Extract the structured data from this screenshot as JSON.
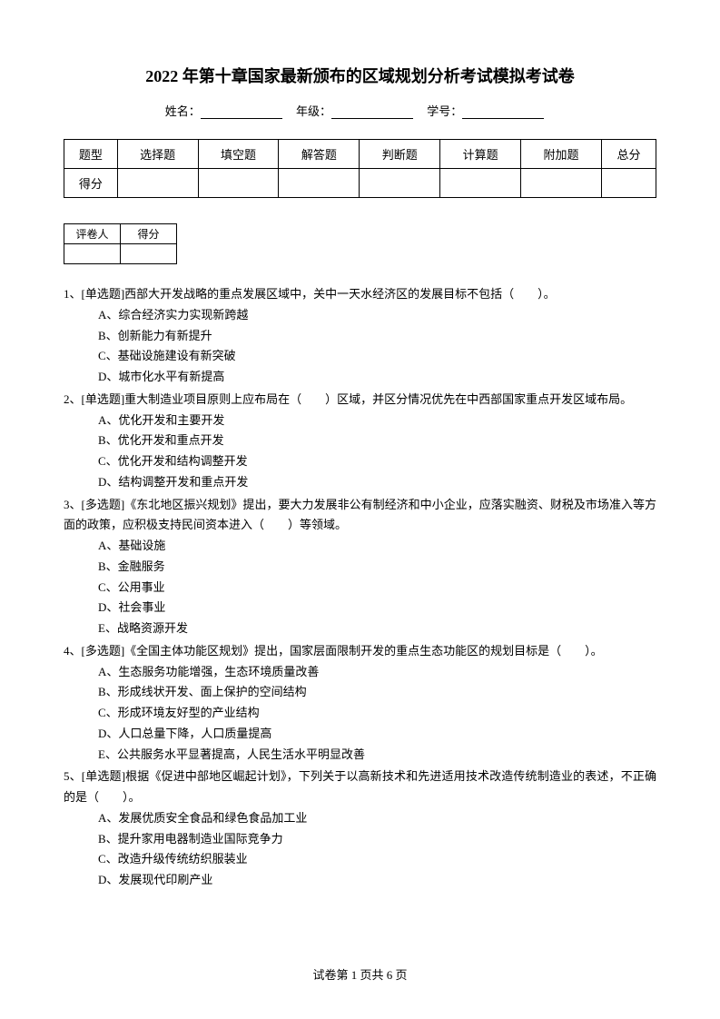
{
  "title": "2022 年第十章国家最新颁布的区域规划分析考试模拟考试卷",
  "info": {
    "name_label": "姓名：",
    "grade_label": "年级：",
    "id_label": "学号："
  },
  "score_table": {
    "row1": [
      "题型",
      "选择题",
      "填空题",
      "解答题",
      "判断题",
      "计算题",
      "附加题",
      "总分"
    ],
    "row2_head": "得分"
  },
  "grader_table": {
    "c1": "评卷人",
    "c2": "得分"
  },
  "questions": [
    {
      "stem": "1、[单选题]西部大开发战略的重点发展区域中，关中一天水经济区的发展目标不包括（　　）。",
      "options": [
        "A、综合经济实力实现新跨越",
        "B、创新能力有新提升",
        "C、基础设施建设有新突破",
        "D、城市化水平有新提高"
      ]
    },
    {
      "stem": "2、[单选题]重大制造业项目原则上应布局在（　　）区域，并区分情况优先在中西部国家重点开发区域布局。",
      "options": [
        "A、优化开发和主要开发",
        "B、优化开发和重点开发",
        "C、优化开发和结构调整开发",
        "D、结构调整开发和重点开发"
      ]
    },
    {
      "stem": "3、[多选题]《东北地区振兴规划》提出，要大力发展非公有制经济和中小企业，应落实融资、财税及市场准入等方面的政策，应积极支持民间资本进入（　　）等领域。",
      "options": [
        "A、基础设施",
        "B、金融服务",
        "C、公用事业",
        "D、社会事业",
        "E、战略资源开发"
      ]
    },
    {
      "stem": "4、[多选题]《全国主体功能区规划》提出，国家层面限制开发的重点生态功能区的规划目标是（　　）。",
      "options": [
        "A、生态服务功能增强，生态环境质量改善",
        "B、形成线状开发、面上保护的空间结构",
        "C、形成环境友好型的产业结构",
        "D、人口总量下降，人口质量提高",
        "E、公共服务水平显著提高，人民生活水平明显改善"
      ]
    },
    {
      "stem": "5、[单选题]根据《促进中部地区崛起计划》，下列关于以高新技术和先进适用技术改造传统制造业的表述，不正确的是（　　）。",
      "options": [
        "A、发展优质安全食品和绿色食品加工业",
        "B、提升家用电器制造业国际竞争力",
        "C、改造升级传统纺织服装业",
        "D、发展现代印刷产业"
      ]
    }
  ],
  "footer": "试卷第 1 页共 6 页"
}
